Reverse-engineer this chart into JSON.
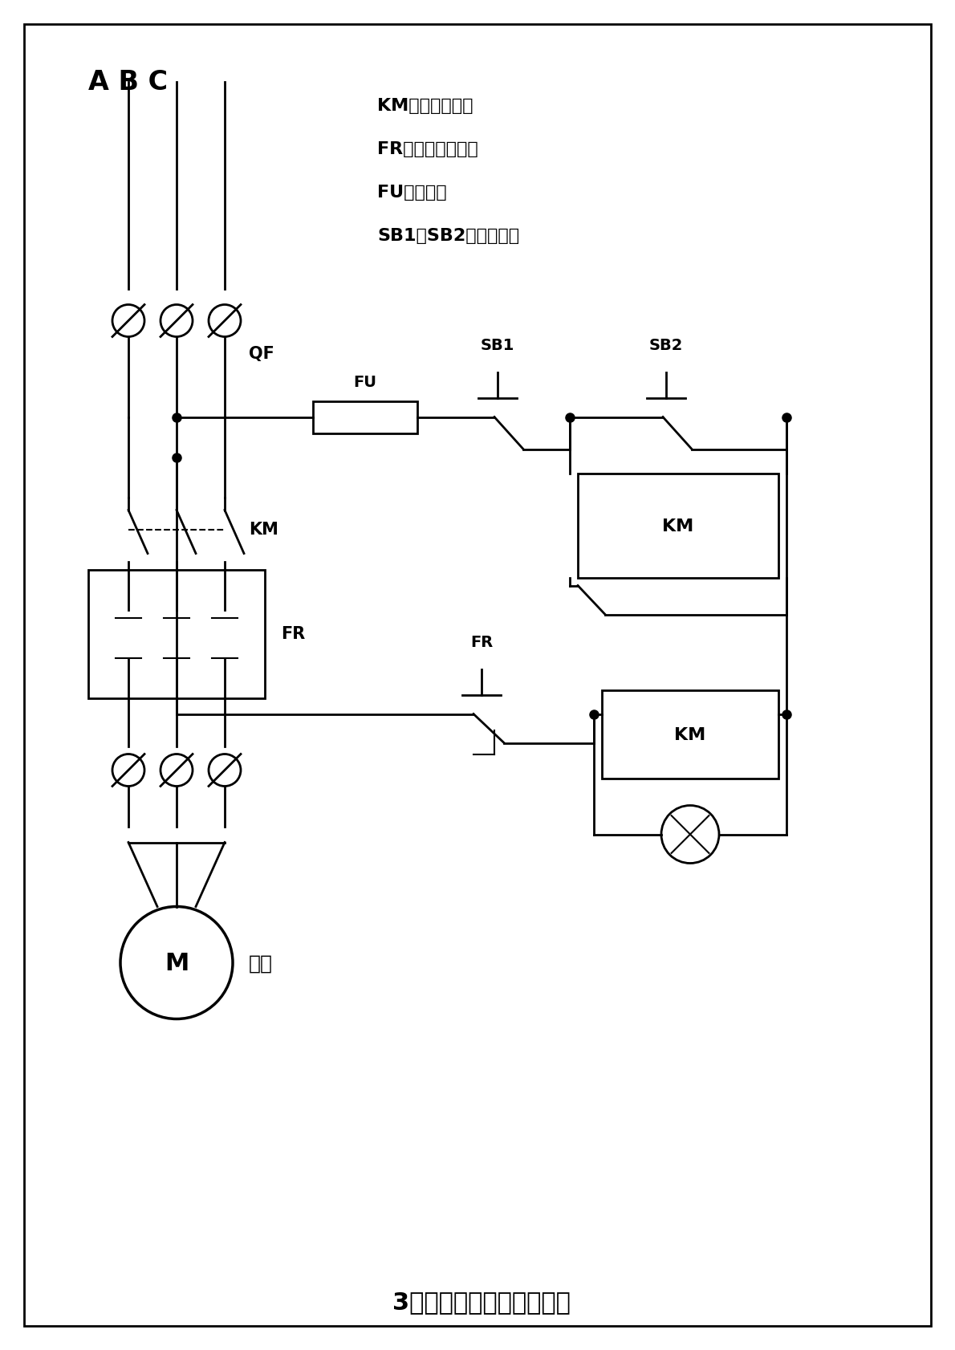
{
  "title": "3相电机启、停控制接线图",
  "legend_km": "KM：交流接触器",
  "legend_fr": "FR：热过载继电器",
  "legend_fu": "FU：保险丝",
  "legend_sb": "SB1、SB2：启停按鈕",
  "label_abc": "A B C",
  "label_qf": "QF",
  "label_fu": "FU",
  "label_sb1": "SB1",
  "label_sb2": "SB2",
  "label_km1": "KM",
  "label_km2": "KM",
  "label_km3": "KM",
  "label_fr1": "FR",
  "label_fr2": "FR",
  "label_motor": "M",
  "label_motor_text": "电机",
  "bg_color": "#ffffff",
  "line_color": "#000000"
}
